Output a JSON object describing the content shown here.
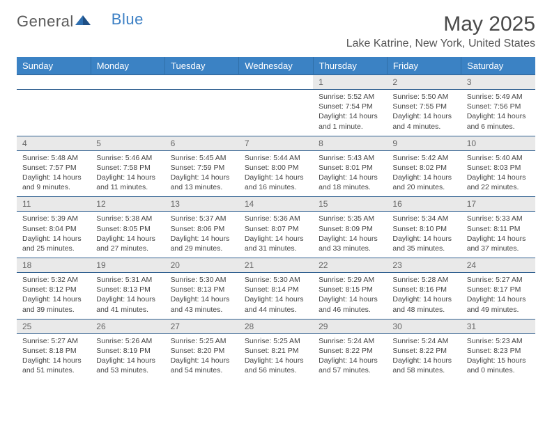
{
  "brand": {
    "word1": "General",
    "word2": "Blue"
  },
  "title": "May 2025",
  "location": "Lake Katrine, New York, United States",
  "colors": {
    "header_bg": "#3b82c4",
    "header_border": "#2f6fa8",
    "row_border": "#2f5f8f",
    "daynum_bg": "#e9e9e9",
    "brand_blue": "#3b7fc4",
    "text": "#444444"
  },
  "dayHeaders": [
    "Sunday",
    "Monday",
    "Tuesday",
    "Wednesday",
    "Thursday",
    "Friday",
    "Saturday"
  ],
  "weeks": [
    [
      {},
      {},
      {},
      {},
      {
        "n": "1",
        "sr": "5:52 AM",
        "ss": "7:54 PM",
        "dl": "14 hours and 1 minute."
      },
      {
        "n": "2",
        "sr": "5:50 AM",
        "ss": "7:55 PM",
        "dl": "14 hours and 4 minutes."
      },
      {
        "n": "3",
        "sr": "5:49 AM",
        "ss": "7:56 PM",
        "dl": "14 hours and 6 minutes."
      }
    ],
    [
      {
        "n": "4",
        "sr": "5:48 AM",
        "ss": "7:57 PM",
        "dl": "14 hours and 9 minutes."
      },
      {
        "n": "5",
        "sr": "5:46 AM",
        "ss": "7:58 PM",
        "dl": "14 hours and 11 minutes."
      },
      {
        "n": "6",
        "sr": "5:45 AM",
        "ss": "7:59 PM",
        "dl": "14 hours and 13 minutes."
      },
      {
        "n": "7",
        "sr": "5:44 AM",
        "ss": "8:00 PM",
        "dl": "14 hours and 16 minutes."
      },
      {
        "n": "8",
        "sr": "5:43 AM",
        "ss": "8:01 PM",
        "dl": "14 hours and 18 minutes."
      },
      {
        "n": "9",
        "sr": "5:42 AM",
        "ss": "8:02 PM",
        "dl": "14 hours and 20 minutes."
      },
      {
        "n": "10",
        "sr": "5:40 AM",
        "ss": "8:03 PM",
        "dl": "14 hours and 22 minutes."
      }
    ],
    [
      {
        "n": "11",
        "sr": "5:39 AM",
        "ss": "8:04 PM",
        "dl": "14 hours and 25 minutes."
      },
      {
        "n": "12",
        "sr": "5:38 AM",
        "ss": "8:05 PM",
        "dl": "14 hours and 27 minutes."
      },
      {
        "n": "13",
        "sr": "5:37 AM",
        "ss": "8:06 PM",
        "dl": "14 hours and 29 minutes."
      },
      {
        "n": "14",
        "sr": "5:36 AM",
        "ss": "8:07 PM",
        "dl": "14 hours and 31 minutes."
      },
      {
        "n": "15",
        "sr": "5:35 AM",
        "ss": "8:09 PM",
        "dl": "14 hours and 33 minutes."
      },
      {
        "n": "16",
        "sr": "5:34 AM",
        "ss": "8:10 PM",
        "dl": "14 hours and 35 minutes."
      },
      {
        "n": "17",
        "sr": "5:33 AM",
        "ss": "8:11 PM",
        "dl": "14 hours and 37 minutes."
      }
    ],
    [
      {
        "n": "18",
        "sr": "5:32 AM",
        "ss": "8:12 PM",
        "dl": "14 hours and 39 minutes."
      },
      {
        "n": "19",
        "sr": "5:31 AM",
        "ss": "8:13 PM",
        "dl": "14 hours and 41 minutes."
      },
      {
        "n": "20",
        "sr": "5:30 AM",
        "ss": "8:13 PM",
        "dl": "14 hours and 43 minutes."
      },
      {
        "n": "21",
        "sr": "5:30 AM",
        "ss": "8:14 PM",
        "dl": "14 hours and 44 minutes."
      },
      {
        "n": "22",
        "sr": "5:29 AM",
        "ss": "8:15 PM",
        "dl": "14 hours and 46 minutes."
      },
      {
        "n": "23",
        "sr": "5:28 AM",
        "ss": "8:16 PM",
        "dl": "14 hours and 48 minutes."
      },
      {
        "n": "24",
        "sr": "5:27 AM",
        "ss": "8:17 PM",
        "dl": "14 hours and 49 minutes."
      }
    ],
    [
      {
        "n": "25",
        "sr": "5:27 AM",
        "ss": "8:18 PM",
        "dl": "14 hours and 51 minutes."
      },
      {
        "n": "26",
        "sr": "5:26 AM",
        "ss": "8:19 PM",
        "dl": "14 hours and 53 minutes."
      },
      {
        "n": "27",
        "sr": "5:25 AM",
        "ss": "8:20 PM",
        "dl": "14 hours and 54 minutes."
      },
      {
        "n": "28",
        "sr": "5:25 AM",
        "ss": "8:21 PM",
        "dl": "14 hours and 56 minutes."
      },
      {
        "n": "29",
        "sr": "5:24 AM",
        "ss": "8:22 PM",
        "dl": "14 hours and 57 minutes."
      },
      {
        "n": "30",
        "sr": "5:24 AM",
        "ss": "8:22 PM",
        "dl": "14 hours and 58 minutes."
      },
      {
        "n": "31",
        "sr": "5:23 AM",
        "ss": "8:23 PM",
        "dl": "15 hours and 0 minutes."
      }
    ]
  ],
  "labels": {
    "sunrise": "Sunrise:",
    "sunset": "Sunset:",
    "daylight": "Daylight:"
  }
}
